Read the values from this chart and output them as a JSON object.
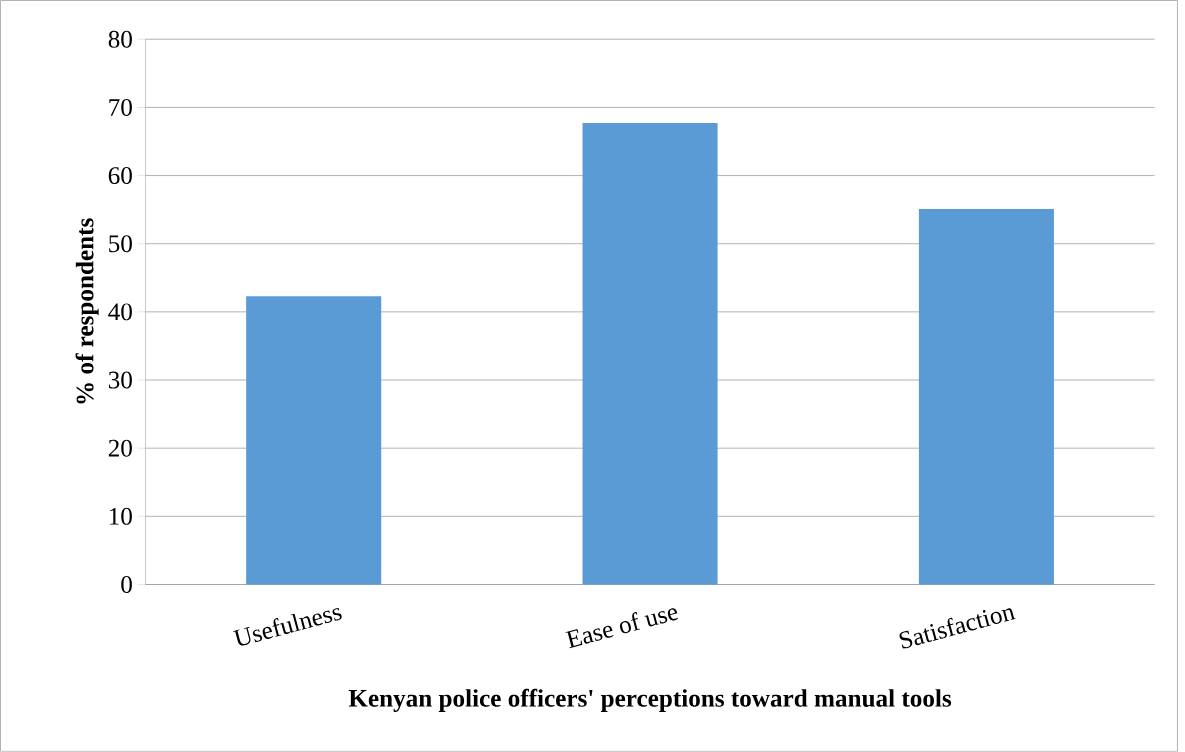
{
  "chart_data": {
    "type": "bar",
    "xlabel": "Kenyan police officers' perceptions toward manual tools",
    "ylabel": "% of respondents",
    "categories": [
      "Usefulness",
      "Ease of use",
      "Satisfaction"
    ],
    "values": [
      42.3,
      67.7,
      55.1
    ],
    "color": "#5b9bd5",
    "ylim": [
      0,
      80
    ],
    "yticks": [
      0,
      10,
      20,
      30,
      40,
      50,
      60,
      70,
      80
    ],
    "grid": "y"
  }
}
